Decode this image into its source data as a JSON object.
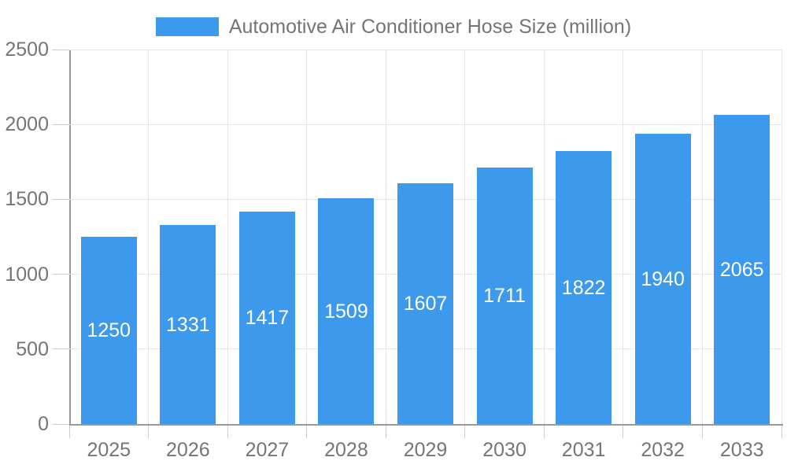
{
  "chart_data": {
    "type": "bar",
    "title": "Automotive Air Conditioner Hose Size (million)",
    "categories": [
      "2025",
      "2026",
      "2027",
      "2028",
      "2029",
      "2030",
      "2031",
      "2032",
      "2033"
    ],
    "values": [
      1250,
      1331,
      1417,
      1509,
      1607,
      1711,
      1822,
      1940,
      2065
    ],
    "xlabel": "",
    "ylabel": "",
    "ylim": [
      0,
      2500
    ],
    "y_ticks": [
      0,
      500,
      1000,
      1500,
      2000,
      2500
    ],
    "grid": true,
    "legend_position": "top",
    "bar_labels_visible": true,
    "colors": {
      "bar": "#3C99EC",
      "bar_label": "#FFFFFF",
      "axis_text": "#757575",
      "legend_text": "#757575",
      "grid_line": "#E6E6E6",
      "axis_line": "#999999",
      "tick_line": "#CCCCCC",
      "background": "#FFFFFF"
    }
  }
}
